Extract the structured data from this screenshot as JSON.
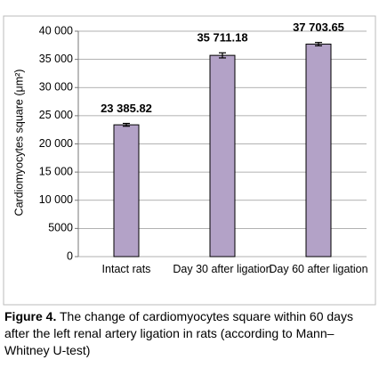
{
  "chart_data": {
    "type": "bar",
    "y_label": "Cardiomyocytes square (μm²)",
    "categories": [
      "Intact rats",
      "Day 30 after ligation",
      "Day 60 after ligation"
    ],
    "values": [
      23385.82,
      35711.18,
      37703.65
    ],
    "value_labels": [
      "23 385.82",
      "35 711.18",
      "37 703.65"
    ],
    "errors": [
      250,
      450,
      300
    ],
    "color": "#b3a2c7",
    "ylim": [
      0,
      40000
    ],
    "yticks": [
      0,
      5000,
      {
        "value": 10000,
        "label": "10 000"
      },
      {
        "value": 15000,
        "label": "15 000"
      },
      {
        "value": 20000,
        "label": "20 000"
      },
      {
        "value": 25000,
        "label": "25 000"
      },
      {
        "value": 30000,
        "label": "30 000"
      },
      {
        "value": 35000,
        "label": "35 000"
      },
      {
        "value": 40000,
        "label": "40 000"
      }
    ],
    "grid": true
  },
  "caption": {
    "label": "Figure 4.",
    "text": "The change of cardiomyocytes square within 60 days after the left renal artery ligation in rats (according to Mann–Whitney U-test)"
  }
}
